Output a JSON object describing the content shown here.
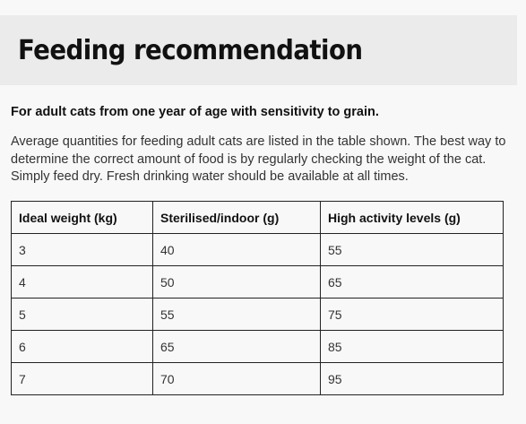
{
  "header": {
    "title": "Feeding recommendation"
  },
  "content": {
    "subtitle": "For adult cats from one year of age with sensitivity to grain.",
    "intro": "Average quantities for feeding adult cats are listed in the table shown. The best way to determine the correct amount of food is by regularly checking the weight of the cat. Simply feed dry. Fresh drinking water should be available at all times."
  },
  "table": {
    "headers": [
      "Ideal weight (kg)",
      "Sterilised/indoor (g)",
      "High activity levels (g)"
    ],
    "rows": [
      [
        "3",
        "40",
        "55"
      ],
      [
        "4",
        "50",
        "65"
      ],
      [
        "5",
        "55",
        "75"
      ],
      [
        "6",
        "65",
        "85"
      ],
      [
        "7",
        "70",
        "95"
      ]
    ]
  }
}
